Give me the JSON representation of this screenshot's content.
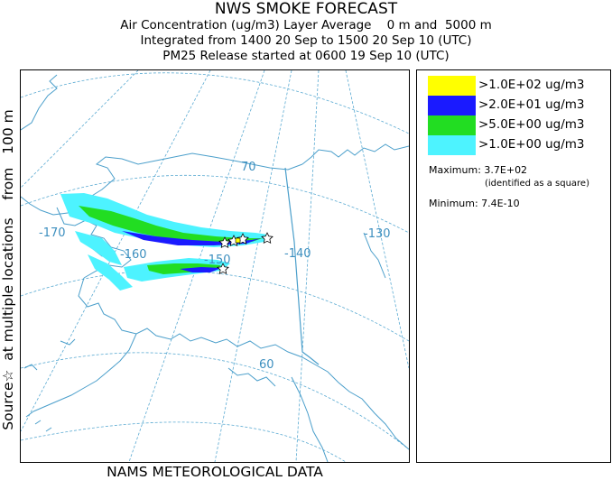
{
  "header": {
    "title": "NWS SMOKE FORECAST",
    "line1": "Air Concentration (ug/m3) Layer Average    0 m and  5000 m",
    "line2": "Integrated from 1400 20 Sep to 1500 20 Sep 10 (UTC)",
    "line3": "PM25 Release started at 0600 19 Sep 10 (UTC)"
  },
  "side_label": "Source☆  at multiple locations    from   100 m",
  "footer": "NAMS METEOROLOGICAL DATA",
  "map": {
    "lon_labels": [
      "-170",
      "-160",
      "-150",
      "-140",
      "-130"
    ],
    "lat_labels": [
      "70",
      "60"
    ],
    "colors": {
      "gridline": "#5aaad2",
      "coastline": "#4b9fcb",
      "level1": "#4df3ff",
      "level2": "#22dd22",
      "level3": "#1a1aff",
      "level4": "#ffff00"
    }
  },
  "legend": {
    "items": [
      {
        "label": ">1.0E+02 ug/m3",
        "color": "#ffff00"
      },
      {
        "label": ">2.0E+01 ug/m3",
        "color": "#1a1aff"
      },
      {
        "label": ">5.0E+00 ug/m3",
        "color": "#22dd22"
      },
      {
        "label": ">1.0E+00 ug/m3",
        "color": "#4df3ff"
      }
    ],
    "maximum": "Maximum: 3.7E+02",
    "maximum_note": "(identified as a square)",
    "minimum": "Minimum: 7.4E-10"
  }
}
